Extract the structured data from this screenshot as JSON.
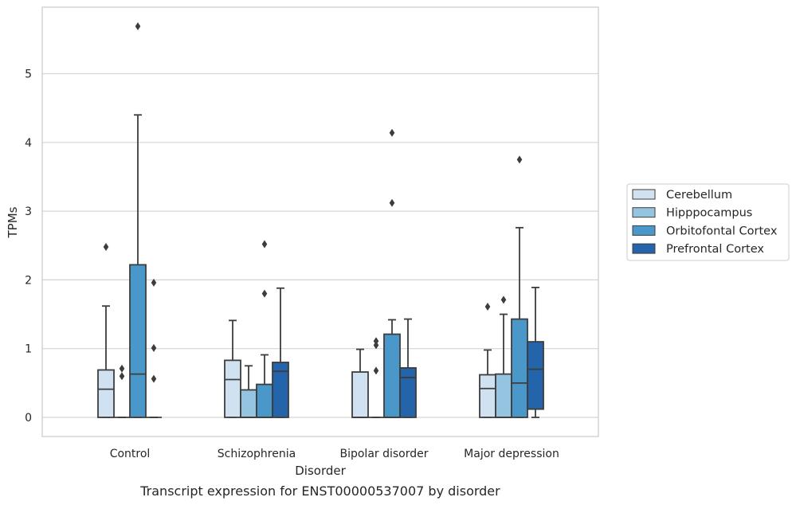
{
  "chart_data": {
    "type": "box",
    "title": "",
    "caption": "Transcript expression for ENST00000537007 by disorder",
    "xlabel": "Disorder",
    "ylabel": "TPMs",
    "ylim": [
      -0.27,
      5.98
    ],
    "yticks": [
      0,
      1,
      2,
      3,
      4,
      5
    ],
    "grid": "horizontal",
    "legend_position": "right",
    "categories": [
      "Control",
      "Schizophrenia",
      "Bipolar disorder",
      "Major depression"
    ],
    "series": [
      {
        "name": "Cerebellum",
        "color": "#d0e1f2",
        "boxes": [
          {
            "whislo": 0,
            "q1": 0,
            "med": 0.41,
            "q3": 0.69,
            "whishi": 1.62,
            "fliers": [
              2.48
            ]
          },
          {
            "whislo": 0,
            "q1": 0,
            "med": 0.55,
            "q3": 0.83,
            "whishi": 1.41,
            "fliers": []
          },
          {
            "whislo": 0,
            "q1": 0,
            "med": 0,
            "q3": 0.66,
            "whishi": 0.99,
            "fliers": []
          },
          {
            "whislo": 0,
            "q1": 0,
            "med": 0.42,
            "q3": 0.62,
            "whishi": 0.98,
            "fliers": [
              1.61
            ]
          }
        ]
      },
      {
        "name": "Hipppocampus",
        "color": "#94c4df",
        "boxes": [
          {
            "whislo": 0,
            "q1": 0,
            "med": 0,
            "q3": 0,
            "whishi": 0,
            "fliers": [
              0.6,
              0.71
            ]
          },
          {
            "whislo": 0,
            "q1": 0,
            "med": 0,
            "q3": 0.4,
            "whishi": 0.75,
            "fliers": []
          },
          {
            "whislo": 0,
            "q1": 0,
            "med": 0,
            "q3": 0,
            "whishi": 0,
            "fliers": [
              0.68,
              1.05,
              1.11
            ]
          },
          {
            "whislo": 0,
            "q1": 0,
            "med": 0,
            "q3": 0.63,
            "whishi": 1.5,
            "fliers": [
              1.71
            ]
          }
        ]
      },
      {
        "name": "Orbitofontal Cortex",
        "color": "#4a98c9",
        "boxes": [
          {
            "whislo": 0,
            "q1": 0,
            "med": 0.63,
            "q3": 2.22,
            "whishi": 4.4,
            "fliers": [
              5.69
            ]
          },
          {
            "whislo": 0,
            "q1": 0,
            "med": 0,
            "q3": 0.48,
            "whishi": 0.91,
            "fliers": [
              1.8,
              2.52
            ]
          },
          {
            "whislo": 0,
            "q1": 0,
            "med": 0,
            "q3": 1.21,
            "whishi": 1.42,
            "fliers": [
              3.12,
              4.14
            ]
          },
          {
            "whislo": 0,
            "q1": 0,
            "med": 0.5,
            "q3": 1.43,
            "whishi": 2.76,
            "fliers": [
              3.75
            ]
          }
        ]
      },
      {
        "name": "Prefrontal Cortex",
        "color": "#2464ab",
        "boxes": [
          {
            "whislo": 0,
            "q1": 0,
            "med": 0,
            "q3": 0,
            "whishi": 0,
            "fliers": [
              0.56,
              1.01,
              1.96
            ]
          },
          {
            "whislo": 0,
            "q1": 0,
            "med": 0.67,
            "q3": 0.8,
            "whishi": 1.88,
            "fliers": []
          },
          {
            "whislo": 0,
            "q1": 0,
            "med": 0.58,
            "q3": 0.72,
            "whishi": 1.43,
            "fliers": []
          },
          {
            "whislo": 0,
            "q1": 0.12,
            "med": 0.7,
            "q3": 1.1,
            "whishi": 1.89,
            "fliers": []
          }
        ]
      }
    ]
  }
}
